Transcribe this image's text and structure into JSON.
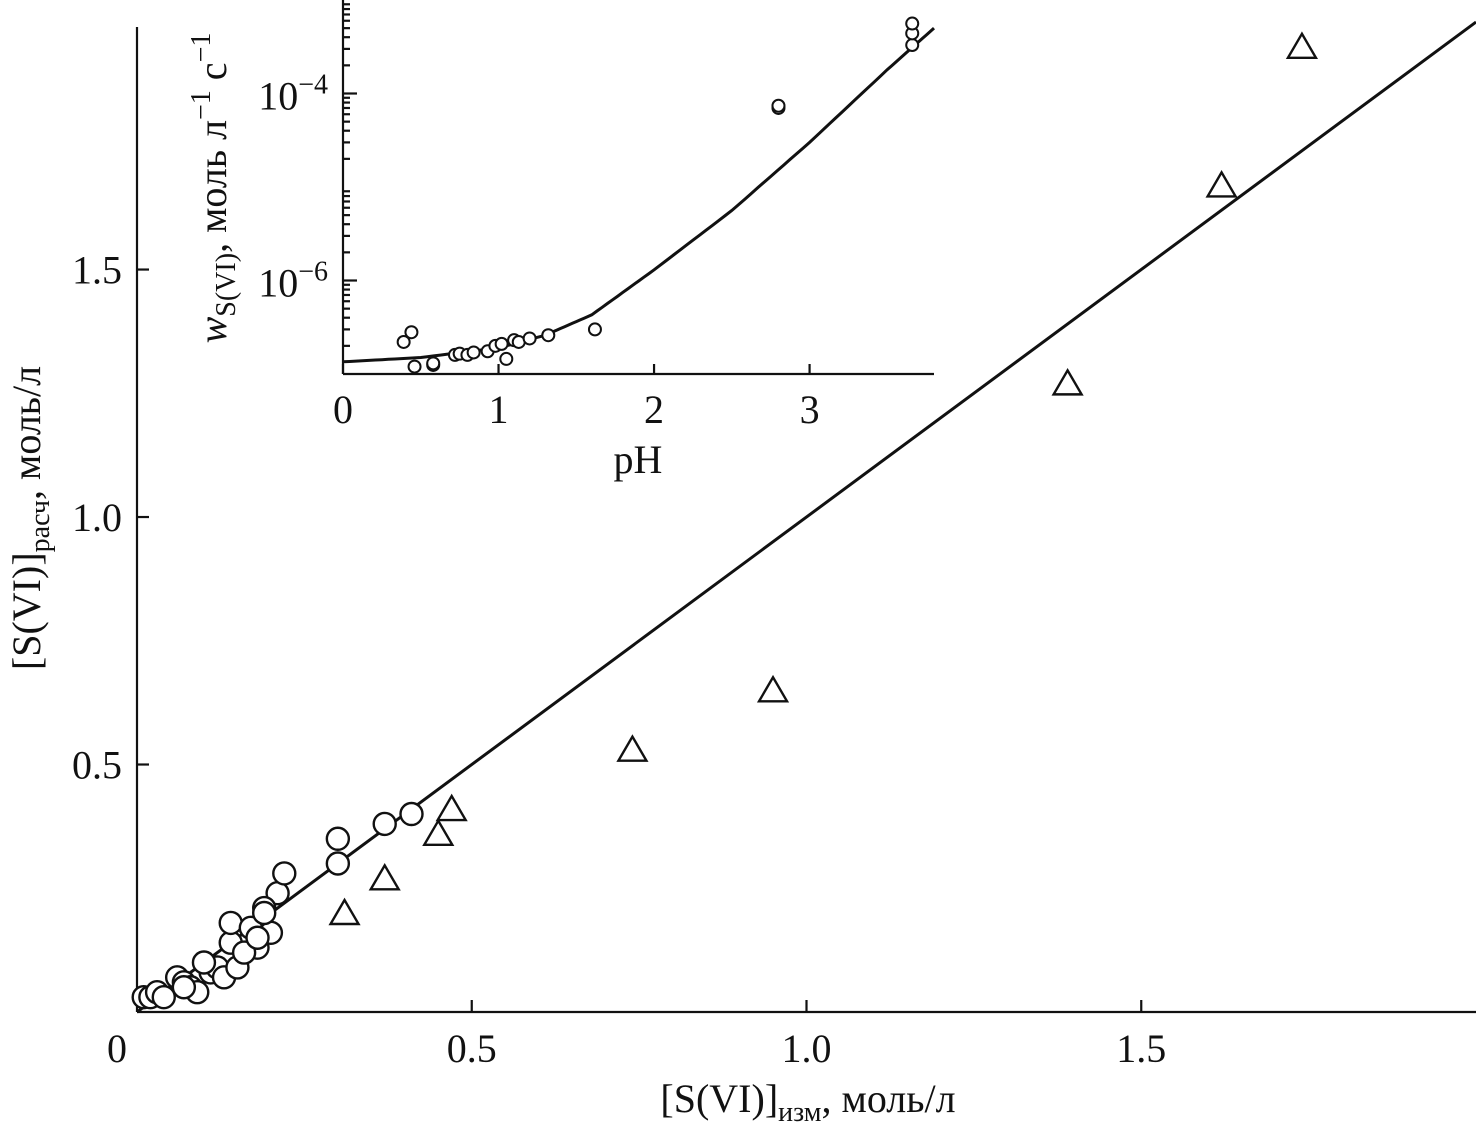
{
  "chart_data": [
    {
      "type": "scatter",
      "title": "",
      "xlabel": {
        "main": "[S(VI)]",
        "sub": "изм",
        "rest": ", моль/л"
      },
      "ylabel": {
        "main": "[S(VI)]",
        "sub": "расч",
        "rest": ", моль/л"
      },
      "xlim": [
        0,
        2.0
      ],
      "ylim": [
        0,
        1.99
      ],
      "x_ticks": [
        0.5,
        1.0,
        1.5
      ],
      "x_tick_labels": [
        "0.5",
        "1.0",
        "1.5"
      ],
      "y_ticks": [
        0.5,
        1.0,
        1.5
      ],
      "y_tick_labels": [
        "0.5",
        "1.0",
        "1.5"
      ],
      "origin_label": "0",
      "grid": false,
      "fit_line": {
        "x": [
          0.0,
          2.0
        ],
        "y": [
          0.0,
          2.0
        ]
      },
      "series": [
        {
          "marker": "circle",
          "x": [
            0.01,
            0.02,
            0.03,
            0.04,
            0.06,
            0.07,
            0.08,
            0.09,
            0.11,
            0.12,
            0.13,
            0.15,
            0.18,
            0.07,
            0.1,
            0.14,
            0.21,
            0.19,
            0.16,
            0.2,
            0.14,
            0.17,
            0.19,
            0.18,
            0.22,
            0.3,
            0.3,
            0.37,
            0.41
          ],
          "y": [
            0.03,
            0.03,
            0.04,
            0.03,
            0.07,
            0.06,
            0.05,
            0.04,
            0.08,
            0.09,
            0.07,
            0.09,
            0.13,
            0.05,
            0.1,
            0.14,
            0.24,
            0.21,
            0.12,
            0.16,
            0.18,
            0.17,
            0.2,
            0.15,
            0.28,
            0.3,
            0.35,
            0.38,
            0.4
          ]
        },
        {
          "marker": "triangle",
          "x": [
            0.31,
            0.37,
            0.45,
            0.47,
            0.74,
            0.95,
            1.39,
            1.62,
            1.74
          ],
          "y": [
            0.2,
            0.27,
            0.36,
            0.41,
            0.53,
            0.65,
            1.27,
            1.67,
            1.95
          ]
        }
      ]
    },
    {
      "type": "scatter",
      "title": "",
      "xlabel": "pH",
      "ylabel": {
        "main": "w",
        "sub": "S(VI)",
        "rest": ", моль л",
        "sup1": "−1",
        "mid": " с",
        "sup2": "−1"
      },
      "xlim": [
        0,
        3.8
      ],
      "ylim": [
        1e-07,
        0.001
      ],
      "y_scale": "log",
      "x_ticks": [
        0,
        1,
        2,
        3
      ],
      "x_tick_labels": [
        "0",
        "1",
        "2",
        "3"
      ],
      "y_ticks": [
        1e-06,
        0.0001
      ],
      "y_tick_labels": [
        {
          "base": "10",
          "exp": "−6"
        },
        {
          "base": "10",
          "exp": "−4"
        }
      ],
      "grid": false,
      "curve": {
        "x": [
          0,
          0.5,
          1.0,
          1.3,
          1.6,
          2.0,
          2.5,
          3.0,
          3.5,
          3.8
        ],
        "y": [
          1.35e-07,
          1.5e-07,
          1.9e-07,
          2.6e-07,
          4.3e-07,
          1.3e-06,
          5.6e-06,
          3e-05,
          0.00018,
          0.0005
        ]
      },
      "series": [
        {
          "marker": "circle",
          "x": [
            0.39,
            0.44,
            0.46,
            0.58,
            0.58,
            0.72,
            0.75,
            0.8,
            0.84,
            0.93,
            0.98,
            1.02,
            1.05,
            1.1,
            1.13,
            1.2,
            1.32,
            1.62,
            2.8,
            2.8,
            3.66,
            3.66,
            3.66
          ],
          "y": [
            2.2e-07,
            2.8e-07,
            1.2e-07,
            1.25e-07,
            1.3e-07,
            1.6e-07,
            1.65e-07,
            1.6e-07,
            1.7e-07,
            1.75e-07,
            2e-07,
            2.1e-07,
            1.45e-07,
            2.3e-07,
            2.2e-07,
            2.4e-07,
            2.6e-07,
            3e-07,
            7e-05,
            7.4e-05,
            0.00033,
            0.00044,
            0.00056
          ]
        }
      ]
    }
  ]
}
